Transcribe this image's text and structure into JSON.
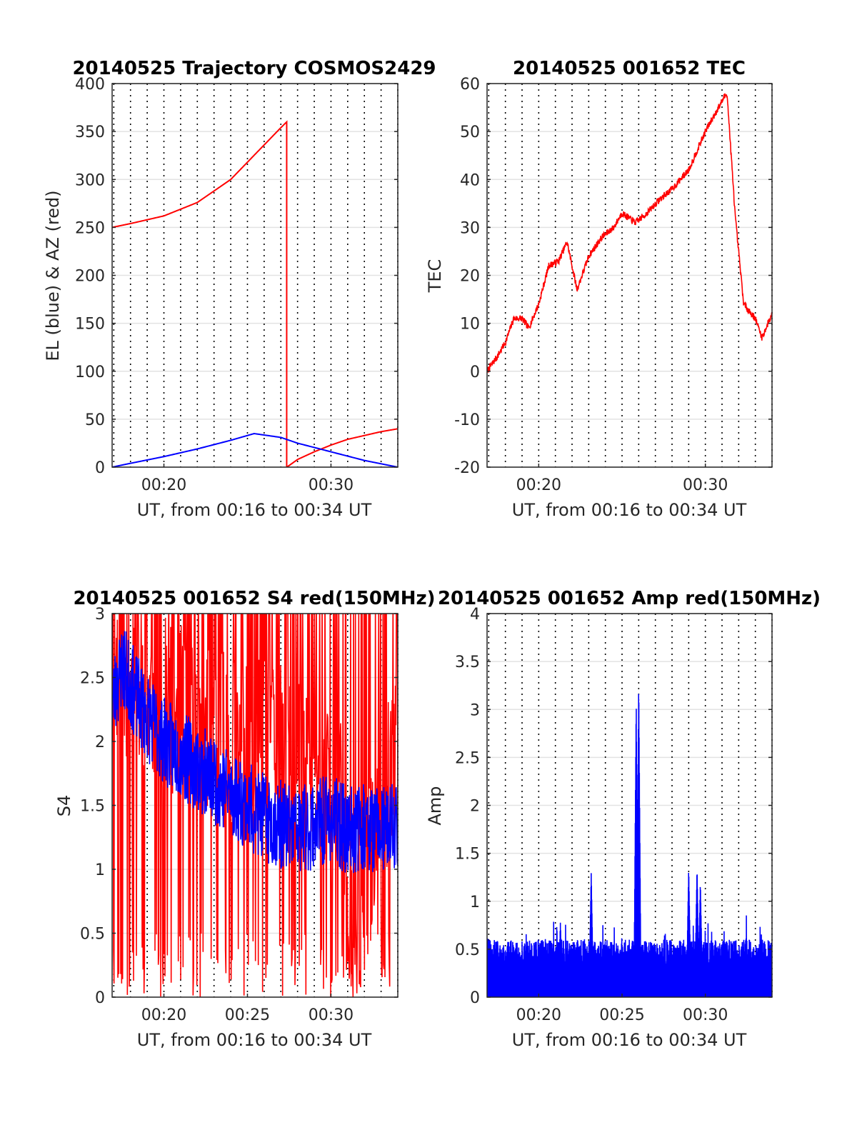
{
  "chart_data": [
    {
      "type": "line",
      "title": "20140525 Trajectory COSMOS2429",
      "xlabel": "UT, from 00:16 to 00:34 UT",
      "ylabel": "EL (blue) & AZ (red)",
      "xlim_min": [
        16.9,
        34
      ],
      "ylim": [
        0,
        400
      ],
      "yticks": [
        0,
        50,
        100,
        150,
        200,
        250,
        300,
        350,
        400
      ],
      "ytick_labels": [
        "0",
        "50",
        "100",
        "150",
        "200",
        "250",
        "300",
        "350",
        "400"
      ],
      "xticks": [
        20,
        30
      ],
      "xtick_labels": [
        "00:20",
        "00:30"
      ],
      "minor_x_dotted": true,
      "grid": true,
      "series": [
        {
          "color": "#ff0000",
          "kind": "smooth",
          "jump_at": 27.35,
          "x": [
            16.9,
            18,
            20,
            22,
            24,
            25,
            26,
            27,
            27.35,
            27.36,
            28,
            29,
            30,
            31,
            32,
            33,
            34
          ],
          "y": [
            250,
            254,
            262,
            276,
            300,
            318,
            336,
            354,
            360,
            0,
            8,
            16,
            23,
            29,
            33,
            37,
            40
          ]
        },
        {
          "color": "#0000ff",
          "kind": "smooth",
          "x": [
            16.9,
            18,
            20,
            22,
            24,
            25.4,
            27,
            28,
            30,
            32,
            34
          ],
          "y": [
            0,
            4,
            11,
            19,
            28,
            35,
            31,
            25,
            16,
            7,
            0
          ]
        }
      ]
    },
    {
      "type": "line",
      "title": "20140525 001652 TEC",
      "xlabel": "UT, from 00:16 to 00:34 UT",
      "ylabel": "TEC",
      "xlim_min": [
        16.9,
        34
      ],
      "ylim": [
        -20,
        60
      ],
      "yticks": [
        -20,
        -10,
        0,
        10,
        20,
        30,
        40,
        50,
        60
      ],
      "ytick_labels": [
        "-20",
        "-10",
        "0",
        "10",
        "20",
        "30",
        "40",
        "50",
        "60"
      ],
      "xticks": [
        20,
        30
      ],
      "xtick_labels": [
        "00:20",
        "00:30"
      ],
      "minor_x_dotted": true,
      "grid": true,
      "series": [
        {
          "color": "#ff0000",
          "kind": "noisy",
          "noise": 0.7,
          "seed": 7,
          "x": [
            16.9,
            17.5,
            18,
            18.5,
            19,
            19.4,
            20,
            20.6,
            21.2,
            21.7,
            22.3,
            23,
            23.8,
            24.5,
            25,
            25.8,
            26.5,
            27.3,
            28,
            29,
            30,
            31.1,
            31.3,
            31.8,
            32.3,
            33,
            33.4,
            34
          ],
          "y": [
            0,
            3,
            6,
            11,
            11,
            9,
            14,
            22,
            23,
            27,
            17,
            24,
            28,
            30,
            33,
            31,
            33,
            36,
            38,
            42,
            50,
            57,
            58,
            32,
            14,
            11,
            7,
            12
          ]
        }
      ]
    },
    {
      "type": "line",
      "title": "20140525 001652 S4 red(150MHz)",
      "xlabel": "UT, from 00:16 to 00:34 UT",
      "ylabel": "S4",
      "xlim_min": [
        16.9,
        34
      ],
      "ylim": [
        0,
        3
      ],
      "yticks": [
        0,
        0.5,
        1,
        1.5,
        2,
        2.5,
        3
      ],
      "ytick_labels": [
        "0",
        "0.5",
        "1",
        "1.5",
        "2",
        "2.5",
        "3"
      ],
      "xticks": [
        20,
        25,
        30
      ],
      "xtick_labels": [
        "00:20",
        "00:25",
        "00:30"
      ],
      "minor_x_dotted": true,
      "grid": true,
      "series": [
        {
          "color": "#ff0000",
          "kind": "spiky",
          "seed": 11,
          "x": [
            16.9,
            20,
            24,
            27.5,
            29,
            30.5,
            31.2,
            32,
            32.8,
            34
          ],
          "y": [
            2.6,
            2.3,
            2.0,
            1.9,
            1.8,
            1.6,
            0.4,
            0.7,
            1.5,
            1.8
          ]
        },
        {
          "color": "#0000ff",
          "kind": "noisy",
          "noise": 0.35,
          "seed": 23,
          "x": [
            16.9,
            17.5,
            18.5,
            20,
            22,
            24,
            25,
            26,
            27,
            28,
            29,
            30,
            31,
            32,
            33,
            34
          ],
          "y": [
            2.3,
            2.6,
            2.3,
            2.0,
            1.8,
            1.6,
            1.5,
            1.4,
            1.35,
            1.3,
            1.35,
            1.4,
            1.3,
            1.35,
            1.3,
            1.35
          ]
        }
      ]
    },
    {
      "type": "line",
      "title": "20140525 001652 Amp red(150MHz)",
      "xlabel": "UT, from 00:16 to 00:34 UT",
      "ylabel": "Amp",
      "xlim_min": [
        16.9,
        34
      ],
      "ylim": [
        0,
        4
      ],
      "yticks": [
        0,
        0.5,
        1,
        1.5,
        2,
        2.5,
        3,
        3.5,
        4
      ],
      "ytick_labels": [
        "0",
        "0.5",
        "1",
        "1.5",
        "2",
        "2.5",
        "3",
        "3.5",
        "4"
      ],
      "xticks": [
        20,
        25,
        30
      ],
      "xtick_labels": [
        "00:20",
        "00:25",
        "00:30"
      ],
      "minor_x_dotted": true,
      "grid": true,
      "series": [
        {
          "color": "#0000ff",
          "kind": "bars",
          "seed": 31,
          "base": 0.3,
          "peaks_x": [
            23.15,
            25.85,
            26.0,
            29.0,
            29.5,
            29.7,
            21.3
          ],
          "peaks_y": [
            1.3,
            3.1,
            3.3,
            1.35,
            1.35,
            1.2,
            0.78
          ]
        }
      ]
    }
  ]
}
